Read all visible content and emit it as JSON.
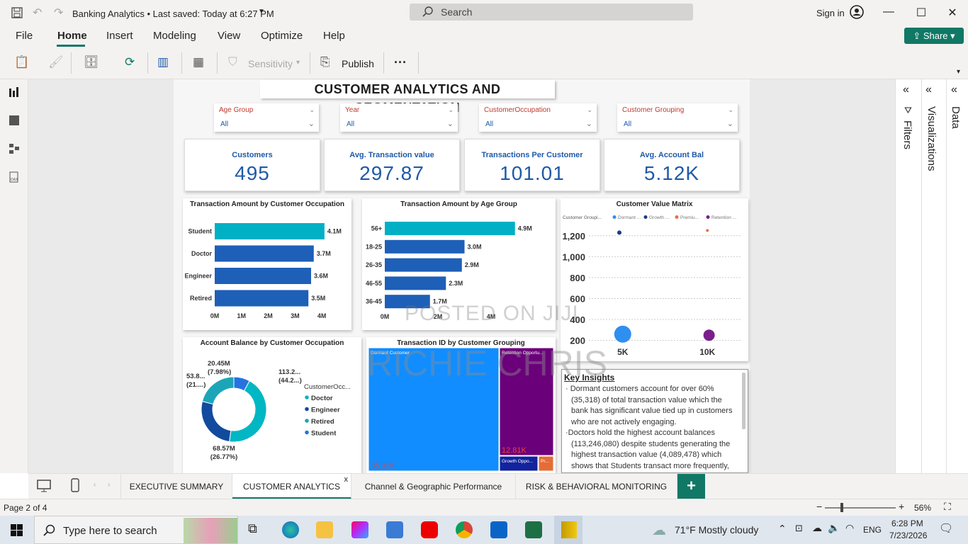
{
  "titlebar": {
    "title": "Banking Analytics • Last saved: Today at 6:27 PM",
    "search_placeholder": "Search",
    "signin": "Sign in"
  },
  "menu": {
    "items": [
      "File",
      "Home",
      "Insert",
      "Modeling",
      "View",
      "Optimize",
      "Help"
    ],
    "active": "Home",
    "share": "Share"
  },
  "ribbon": {
    "sensitivity": "Sensitivity",
    "publish": "Publish",
    "more": "···"
  },
  "report": {
    "title": "CUSTOMER ANALYTICS AND SEGMENTATION",
    "slicers": [
      {
        "label": "Age Group",
        "value": "All"
      },
      {
        "label": "Year",
        "value": "All"
      },
      {
        "label": "CustomerOccupation",
        "value": "All"
      },
      {
        "label": "Customer Grouping",
        "value": "All"
      }
    ],
    "kpis": [
      {
        "label": "Customers",
        "value": "495"
      },
      {
        "label": "Avg. Transaction value",
        "value": "297.87"
      },
      {
        "label": "Transactions Per Customer",
        "value": "101.01"
      },
      {
        "label": "Avg. Account Bal",
        "value": "5.12K"
      }
    ],
    "insights_title": "Key Insights",
    "insights": [
      "Dormant customers account for over 60% (35,318) of total transaction value which the bank has significant value tied up in customers who are not actively engaging.",
      "Doctors hold the highest account balances (113,246,080) despite students generating the highest transaction value (4,089,478) which shows that Students transact more frequently,"
    ]
  },
  "chart_data": [
    {
      "type": "bar",
      "title": "Transaction Amount by Customer Occupation",
      "categories": [
        "Student",
        "Doctor",
        "Engineer",
        "Retired"
      ],
      "values": [
        4.1,
        3.7,
        3.6,
        3.5
      ],
      "data_labels": [
        "4.1M",
        "3.7M",
        "3.6M",
        "3.5M"
      ],
      "x_ticks": [
        "0M",
        "1M",
        "2M",
        "3M",
        "4M"
      ],
      "xlim": [
        0,
        4.5
      ],
      "colors": [
        "#01b0c4",
        "#1e5fb8",
        "#1e5fb8",
        "#1e5fb8"
      ]
    },
    {
      "type": "bar",
      "title": "Transaction Amount by Age Group",
      "categories": [
        "56+",
        "18-25",
        "26-35",
        "46-55",
        "36-45"
      ],
      "values": [
        4.9,
        3.0,
        2.9,
        2.3,
        1.7
      ],
      "data_labels": [
        "4.9M",
        "3.0M",
        "2.9M",
        "2.3M",
        "1.7M"
      ],
      "x_ticks": [
        "0M",
        "2M",
        "4M"
      ],
      "xlim": [
        0,
        5.6
      ],
      "colors": [
        "#01b0c4",
        "#1e5fb8",
        "#1e5fb8",
        "#1e5fb8",
        "#1e5fb8"
      ]
    },
    {
      "type": "scatter",
      "title": "Customer Value Matrix",
      "legend_title": "Customer Groupi...",
      "legend": [
        {
          "name": "Dormant ...",
          "color": "#2f8ff0"
        },
        {
          "name": "Growth ...",
          "color": "#1a3a8a"
        },
        {
          "name": "Premiu...",
          "color": "#e0734a"
        },
        {
          "name": "Retention ...",
          "color": "#7a1f8c"
        }
      ],
      "y_ticks": [
        "1,200",
        "1,000",
        "800",
        "600",
        "400",
        "200"
      ],
      "x_ticks": [
        "5K",
        "10K"
      ],
      "points": [
        {
          "x": 4800,
          "y": 1230,
          "series": "Growth ...",
          "size": 3
        },
        {
          "x": 10000,
          "y": 1250,
          "series": "Premiu...",
          "size": 2
        },
        {
          "x": 5000,
          "y": 260,
          "series": "Dormant ...",
          "size": 12
        },
        {
          "x": 10100,
          "y": 250,
          "series": "Retention ...",
          "size": 8
        }
      ],
      "xlim": [
        3000,
        12000
      ],
      "ylim": [
        150,
        1300
      ]
    },
    {
      "type": "pie",
      "title": "Account Balance by Customer Occupation",
      "legend_title": "CustomerOcc...",
      "categories": [
        "Doctor",
        "Engineer",
        "Retired",
        "Student"
      ],
      "values": [
        44.2,
        26.77,
        21.0,
        7.98
      ],
      "labels": [
        "113.2...\n(44.2...)",
        "68.57M\n(26.77%)",
        "53.8...\n(21....)",
        "20.45M\n(7.98%)"
      ],
      "colors": [
        "#00b7c3",
        "#124a9e",
        "#1ca5b8",
        "#2573e0"
      ]
    },
    {
      "type": "heatmap",
      "title": "Transaction ID by Customer Grouping",
      "tiles": [
        {
          "name": "Dormant Customer",
          "value": "35.32K",
          "color": "#118dff"
        },
        {
          "name": "Retention Opportu...",
          "value": "12.81K",
          "color": "#6b007b"
        },
        {
          "name": "Growth Oppo...",
          "value": "",
          "color": "#12239e"
        },
        {
          "name": "Pr...",
          "value": "",
          "color": "#e66c37"
        }
      ]
    }
  ],
  "watermarks": [
    "POSTED ON JIJI",
    "RICHIE CHRIS"
  ],
  "panes": {
    "filters": "Filters",
    "visualizations": "Visualizations",
    "data": "Data"
  },
  "tabs": [
    "EXECUTIVE SUMMARY",
    "CUSTOMER ANALYTICS",
    "Channel & Geographic Performance",
    "RISK & BEHAVIORAL MONITORING"
  ],
  "active_tab": "CUSTOMER ANALYTICS",
  "status": {
    "page": "Page 2 of 4",
    "zoom": "56%"
  },
  "taskbar": {
    "search": "Type here to search",
    "weather": "71°F  Mostly cloudy",
    "lang": "ENG",
    "time": "6:28 PM",
    "date": "7/23/2026"
  }
}
